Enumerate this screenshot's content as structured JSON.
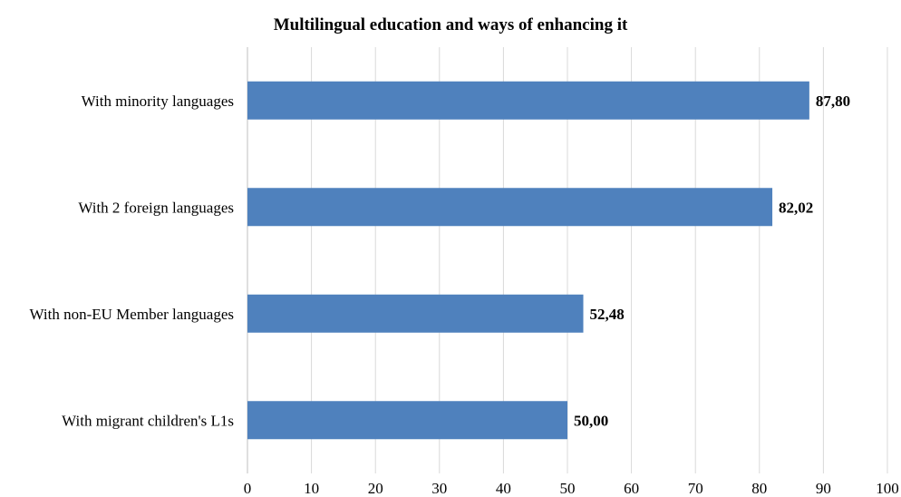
{
  "chart_data": {
    "type": "bar",
    "orientation": "horizontal",
    "title": "Multilingual education and ways of enhancing it",
    "categories": [
      "With minority languages",
      "With 2 foreign languages",
      "With non-EU Member languages",
      "With migrant children's L1s"
    ],
    "values": [
      87.8,
      82.02,
      52.48,
      50.0
    ],
    "data_labels": [
      "87,80",
      "82,02",
      "52,48",
      "50,00"
    ],
    "xlim": [
      0,
      100
    ],
    "x_ticks": [
      0,
      10,
      20,
      30,
      40,
      50,
      60,
      70,
      80,
      90,
      100
    ],
    "grid": true,
    "legend": "none",
    "bar_color": "#4f81bd",
    "xlabel": "",
    "ylabel": ""
  }
}
